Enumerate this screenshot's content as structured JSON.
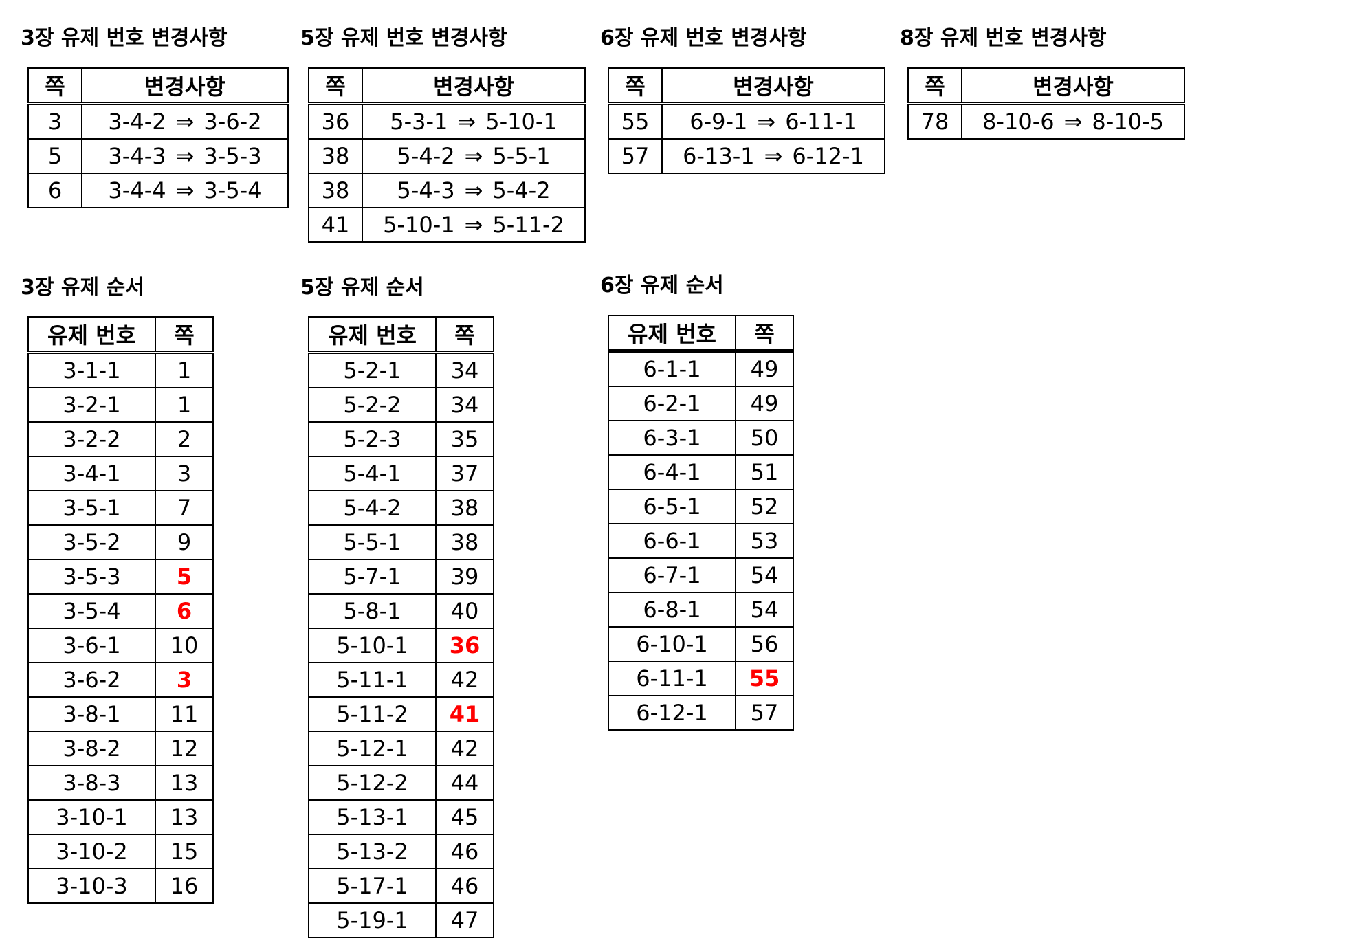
{
  "change_tables": [
    {
      "title": "3장 유제 번호 변경사항",
      "headers": [
        "쪽",
        "변경사항"
      ],
      "rows": [
        [
          "3",
          "3-4-2",
          "3-6-2"
        ],
        [
          "5",
          "3-4-3",
          "3-5-3"
        ],
        [
          "6",
          "3-4-4",
          "3-5-4"
        ]
      ]
    },
    {
      "title": "5장 유제 번호 변경사항",
      "headers": [
        "쪽",
        "변경사항"
      ],
      "rows": [
        [
          "36",
          "5-3-1",
          "5-10-1"
        ],
        [
          "38",
          "5-4-2",
          "5-5-1"
        ],
        [
          "38",
          "5-4-3",
          "5-4-2"
        ],
        [
          "41",
          "5-10-1",
          "5-11-2"
        ]
      ]
    },
    {
      "title": "6장 유제 번호 변경사항",
      "headers": [
        "쪽",
        "변경사항"
      ],
      "rows": [
        [
          "55",
          "6-9-1",
          "6-11-1"
        ],
        [
          "57",
          "6-13-1",
          "6-12-1"
        ]
      ]
    },
    {
      "title": "8장 유제 번호 변경사항",
      "headers": [
        "쪽",
        "변경사항"
      ],
      "rows": [
        [
          "78",
          "8-10-6",
          "8-10-5"
        ]
      ]
    }
  ],
  "arrow": "⇒",
  "order_tables": [
    {
      "title": "3장 유제 순서",
      "headers": [
        "유제 번호",
        "쪽"
      ],
      "rows": [
        [
          "3-1-1",
          "1",
          false
        ],
        [
          "3-2-1",
          "1",
          false
        ],
        [
          "3-2-2",
          "2",
          false
        ],
        [
          "3-4-1",
          "3",
          false
        ],
        [
          "3-5-1",
          "7",
          false
        ],
        [
          "3-5-2",
          "9",
          false
        ],
        [
          "3-5-3",
          "5",
          true
        ],
        [
          "3-5-4",
          "6",
          true
        ],
        [
          "3-6-1",
          "10",
          false
        ],
        [
          "3-6-2",
          "3",
          true
        ],
        [
          "3-8-1",
          "11",
          false
        ],
        [
          "3-8-2",
          "12",
          false
        ],
        [
          "3-8-3",
          "13",
          false
        ],
        [
          "3-10-1",
          "13",
          false
        ],
        [
          "3-10-2",
          "15",
          false
        ],
        [
          "3-10-3",
          "16",
          false
        ]
      ]
    },
    {
      "title": "5장 유제 순서",
      "headers": [
        "유제 번호",
        "쪽"
      ],
      "rows": [
        [
          "5-2-1",
          "34",
          false
        ],
        [
          "5-2-2",
          "34",
          false
        ],
        [
          "5-2-3",
          "35",
          false
        ],
        [
          "5-4-1",
          "37",
          false
        ],
        [
          "5-4-2",
          "38",
          false
        ],
        [
          "5-5-1",
          "38",
          false
        ],
        [
          "5-7-1",
          "39",
          false
        ],
        [
          "5-8-1",
          "40",
          false
        ],
        [
          "5-10-1",
          "36",
          true
        ],
        [
          "5-11-1",
          "42",
          false
        ],
        [
          "5-11-2",
          "41",
          true
        ],
        [
          "5-12-1",
          "42",
          false
        ],
        [
          "5-12-2",
          "44",
          false
        ],
        [
          "5-13-1",
          "45",
          false
        ],
        [
          "5-13-2",
          "46",
          false
        ],
        [
          "5-17-1",
          "46",
          false
        ],
        [
          "5-19-1",
          "47",
          false
        ]
      ]
    },
    {
      "title": "6장 유제 순서",
      "headers": [
        "유제 번호",
        "쪽"
      ],
      "rows": [
        [
          "6-1-1",
          "49",
          false
        ],
        [
          "6-2-1",
          "49",
          false
        ],
        [
          "6-3-1",
          "50",
          false
        ],
        [
          "6-4-1",
          "51",
          false
        ],
        [
          "6-5-1",
          "52",
          false
        ],
        [
          "6-6-1",
          "53",
          false
        ],
        [
          "6-7-1",
          "54",
          false
        ],
        [
          "6-8-1",
          "54",
          false
        ],
        [
          "6-10-1",
          "56",
          false
        ],
        [
          "6-11-1",
          "55",
          true
        ],
        [
          "6-12-1",
          "57",
          false
        ]
      ]
    }
  ],
  "colors": {
    "highlight": "#ff0000",
    "text": "#000000",
    "border": "#000000"
  }
}
